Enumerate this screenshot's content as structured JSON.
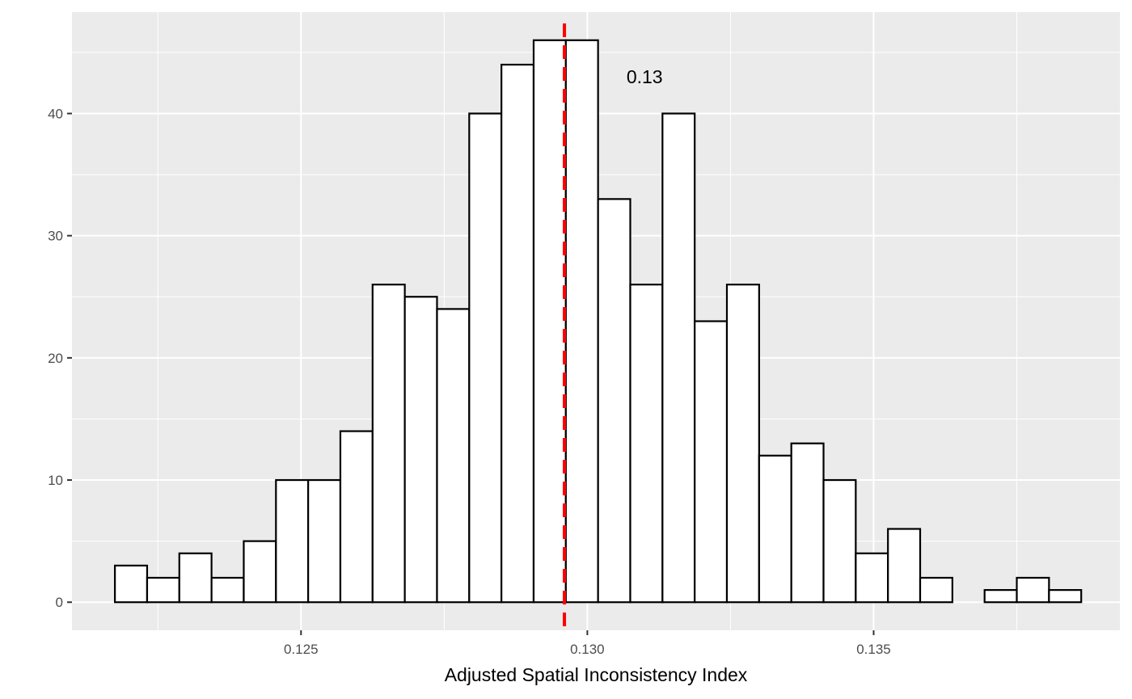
{
  "chart_data": {
    "type": "bar",
    "subtype": "histogram",
    "xlabel": "Adjusted Spatial Inconsistency Index",
    "ylabel": "",
    "title": "",
    "bin_start": 0.12175,
    "bin_width": 0.0005625,
    "counts": [
      3,
      2,
      4,
      2,
      5,
      10,
      10,
      14,
      26,
      25,
      24,
      40,
      44,
      46,
      46,
      33,
      26,
      40,
      23,
      26,
      12,
      13,
      10,
      4,
      6,
      2,
      0,
      1,
      2,
      1
    ],
    "xlim": [
      0.121,
      0.1393
    ],
    "ylim": [
      -2.3,
      48.3
    ],
    "x_ticks": [
      0.125,
      0.13,
      0.135
    ],
    "x_tick_labels": [
      "0.125",
      "0.130",
      "0.135"
    ],
    "y_ticks": [
      0,
      10,
      20,
      30,
      40
    ],
    "y_tick_labels": [
      "0",
      "10",
      "20",
      "30",
      "40"
    ],
    "grid": true,
    "reference_line": {
      "x": 0.1296,
      "style": "dashed",
      "color": "#ff0000"
    },
    "annotation": {
      "text": "0.13",
      "x": 0.131,
      "y": 43
    },
    "colors": {
      "panel_background": "#ebebeb",
      "grid_major": "#ffffff",
      "bar_fill": "#ffffff",
      "bar_outline": "#000000",
      "tick_text": "#4d4d4d",
      "tick_mark": "#333333"
    }
  }
}
